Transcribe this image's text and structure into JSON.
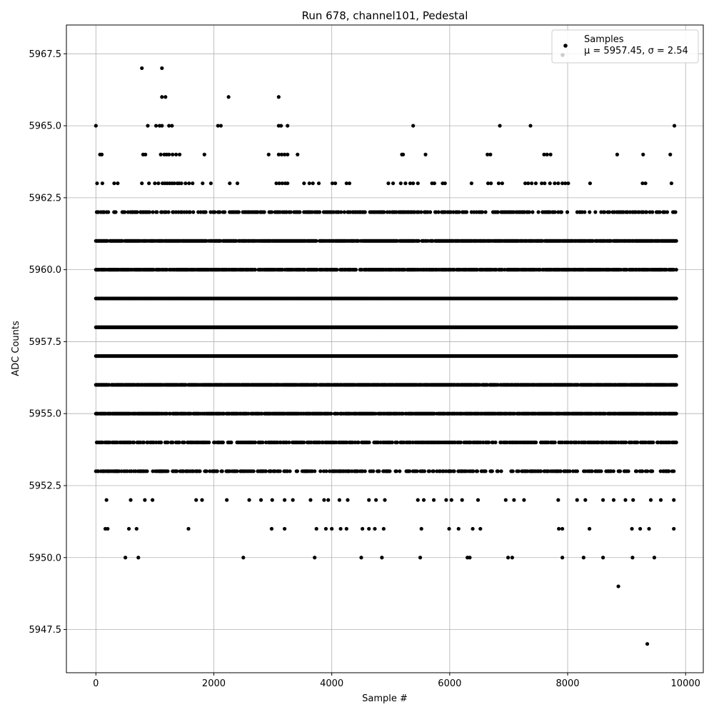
{
  "chart_data": {
    "type": "scatter",
    "title": "Run 678, channel101, Pedestal",
    "xlabel": "Sample #",
    "ylabel": "ADC Counts",
    "xlim": [
      -500,
      10300
    ],
    "ylim": [
      5946.0,
      5968.5
    ],
    "xticks": [
      0,
      2000,
      4000,
      6000,
      8000,
      10000
    ],
    "xtick_labels": [
      "0",
      "2000",
      "4000",
      "6000",
      "8000",
      "10000"
    ],
    "yticks": [
      5947.5,
      5950.0,
      5952.5,
      5955.0,
      5957.5,
      5960.0,
      5962.5,
      5965.0,
      5967.5
    ],
    "ytick_labels": [
      "5947.5",
      "5950.0",
      "5952.5",
      "5955.0",
      "5957.5",
      "5960.0",
      "5962.5",
      "5965.0",
      "5967.5"
    ],
    "grid": true,
    "legend": {
      "position": "top-right",
      "entries": [
        {
          "label": "Samples",
          "color": "#000000"
        },
        {
          "label": "μ = 5957.45, σ = 2.54",
          "color": "#c0c0c0"
        }
      ]
    },
    "series": [
      {
        "name": "Samples",
        "color": "#000000",
        "points": [
          [
            780,
            5967
          ],
          [
            1120,
            5967
          ],
          [
            1120,
            5966
          ],
          [
            1180,
            5966
          ],
          [
            2250,
            5966
          ],
          [
            3100,
            5966
          ],
          [
            0,
            5965
          ],
          [
            880,
            5965
          ],
          [
            1020,
            5965
          ],
          [
            1080,
            5965
          ],
          [
            1120,
            5965
          ],
          [
            1240,
            5965
          ],
          [
            1290,
            5965
          ],
          [
            2070,
            5965
          ],
          [
            2120,
            5965
          ],
          [
            3100,
            5965
          ],
          [
            3140,
            5965
          ],
          [
            3250,
            5965
          ],
          [
            5380,
            5965
          ],
          [
            6850,
            5965
          ],
          [
            7370,
            5965
          ],
          [
            9810,
            5965
          ],
          [
            70,
            5964
          ],
          [
            100,
            5964
          ],
          [
            800,
            5964
          ],
          [
            840,
            5964
          ],
          [
            1100,
            5964
          ],
          [
            1160,
            5964
          ],
          [
            1200,
            5964
          ],
          [
            1240,
            5964
          ],
          [
            1300,
            5964
          ],
          [
            1360,
            5964
          ],
          [
            1420,
            5964
          ],
          [
            1840,
            5964
          ],
          [
            2930,
            5964
          ],
          [
            3100,
            5964
          ],
          [
            3150,
            5964
          ],
          [
            3200,
            5964
          ],
          [
            3250,
            5964
          ],
          [
            3420,
            5964
          ],
          [
            5190,
            5964
          ],
          [
            5210,
            5964
          ],
          [
            5590,
            5964
          ],
          [
            6640,
            5964
          ],
          [
            6690,
            5964
          ],
          [
            7600,
            5964
          ],
          [
            7650,
            5964
          ],
          [
            7710,
            5964
          ],
          [
            8840,
            5964
          ],
          [
            9280,
            5964
          ],
          [
            9740,
            5964
          ],
          [
            20,
            5963
          ],
          [
            110,
            5963
          ],
          [
            310,
            5963
          ],
          [
            370,
            5963
          ],
          [
            780,
            5963
          ],
          [
            900,
            5963
          ],
          [
            1000,
            5963
          ],
          [
            1060,
            5963
          ],
          [
            1130,
            5963
          ],
          [
            1170,
            5963
          ],
          [
            1210,
            5963
          ],
          [
            1250,
            5963
          ],
          [
            1290,
            5963
          ],
          [
            1330,
            5963
          ],
          [
            1380,
            5963
          ],
          [
            1410,
            5963
          ],
          [
            1450,
            5963
          ],
          [
            1520,
            5963
          ],
          [
            1580,
            5963
          ],
          [
            1640,
            5963
          ],
          [
            1810,
            5963
          ],
          [
            1950,
            5963
          ],
          [
            2270,
            5963
          ],
          [
            2400,
            5963
          ],
          [
            3060,
            5963
          ],
          [
            3110,
            5963
          ],
          [
            3160,
            5963
          ],
          [
            3210,
            5963
          ],
          [
            3250,
            5963
          ],
          [
            3530,
            5963
          ],
          [
            3620,
            5963
          ],
          [
            3680,
            5963
          ],
          [
            3780,
            5963
          ],
          [
            4010,
            5963
          ],
          [
            4060,
            5963
          ],
          [
            4250,
            5963
          ],
          [
            4300,
            5963
          ],
          [
            4960,
            5963
          ],
          [
            5040,
            5963
          ],
          [
            5170,
            5963
          ],
          [
            5250,
            5963
          ],
          [
            5330,
            5963
          ],
          [
            5380,
            5963
          ],
          [
            5460,
            5963
          ],
          [
            5700,
            5963
          ],
          [
            5740,
            5963
          ],
          [
            5880,
            5963
          ],
          [
            5920,
            5963
          ],
          [
            6370,
            5963
          ],
          [
            6650,
            5963
          ],
          [
            6700,
            5963
          ],
          [
            6830,
            5963
          ],
          [
            6890,
            5963
          ],
          [
            7280,
            5963
          ],
          [
            7330,
            5963
          ],
          [
            7390,
            5963
          ],
          [
            7460,
            5963
          ],
          [
            7560,
            5963
          ],
          [
            7610,
            5963
          ],
          [
            7700,
            5963
          ],
          [
            7780,
            5963
          ],
          [
            7840,
            5963
          ],
          [
            7910,
            5963
          ],
          [
            7960,
            5963
          ],
          [
            8010,
            5963
          ],
          [
            8380,
            5963
          ],
          [
            9270,
            5963
          ],
          [
            9320,
            5963
          ],
          [
            9760,
            5963
          ]
        ]
      },
      {
        "name": "Samples",
        "color": "#000000",
        "points": [
          [
            180,
            5952
          ],
          [
            590,
            5952
          ],
          [
            830,
            5952
          ],
          [
            960,
            5952
          ],
          [
            1700,
            5952
          ],
          [
            1800,
            5952
          ],
          [
            2220,
            5952
          ],
          [
            2600,
            5952
          ],
          [
            2800,
            5952
          ],
          [
            2990,
            5952
          ],
          [
            3200,
            5952
          ],
          [
            3340,
            5952
          ],
          [
            3640,
            5952
          ],
          [
            3870,
            5952
          ],
          [
            3940,
            5952
          ],
          [
            4130,
            5952
          ],
          [
            4270,
            5952
          ],
          [
            4630,
            5952
          ],
          [
            4750,
            5952
          ],
          [
            4900,
            5952
          ],
          [
            5460,
            5952
          ],
          [
            5560,
            5952
          ],
          [
            5730,
            5952
          ],
          [
            5940,
            5952
          ],
          [
            6030,
            5952
          ],
          [
            6210,
            5952
          ],
          [
            6480,
            5952
          ],
          [
            6950,
            5952
          ],
          [
            7090,
            5952
          ],
          [
            7260,
            5952
          ],
          [
            7840,
            5952
          ],
          [
            8160,
            5952
          ],
          [
            8300,
            5952
          ],
          [
            8600,
            5952
          ],
          [
            8780,
            5952
          ],
          [
            8980,
            5952
          ],
          [
            9110,
            5952
          ],
          [
            9410,
            5952
          ],
          [
            9580,
            5952
          ],
          [
            9800,
            5952
          ],
          [
            160,
            5951
          ],
          [
            200,
            5951
          ],
          [
            560,
            5951
          ],
          [
            690,
            5951
          ],
          [
            1570,
            5951
          ],
          [
            2980,
            5951
          ],
          [
            3200,
            5951
          ],
          [
            3740,
            5951
          ],
          [
            3900,
            5951
          ],
          [
            4000,
            5951
          ],
          [
            4150,
            5951
          ],
          [
            4250,
            5951
          ],
          [
            4520,
            5951
          ],
          [
            4630,
            5951
          ],
          [
            4730,
            5951
          ],
          [
            4880,
            5951
          ],
          [
            5520,
            5951
          ],
          [
            5990,
            5951
          ],
          [
            6150,
            5951
          ],
          [
            6390,
            5951
          ],
          [
            6520,
            5951
          ],
          [
            7850,
            5951
          ],
          [
            7910,
            5951
          ],
          [
            8370,
            5951
          ],
          [
            9090,
            5951
          ],
          [
            9230,
            5951
          ],
          [
            9380,
            5951
          ],
          [
            9800,
            5951
          ],
          [
            500,
            5950
          ],
          [
            720,
            5950
          ],
          [
            2500,
            5950
          ],
          [
            3710,
            5950
          ],
          [
            4500,
            5950
          ],
          [
            4850,
            5950
          ],
          [
            5500,
            5950
          ],
          [
            6300,
            5950
          ],
          [
            6340,
            5950
          ],
          [
            6990,
            5950
          ],
          [
            7060,
            5950
          ],
          [
            7910,
            5950
          ],
          [
            8270,
            5950
          ],
          [
            8600,
            5950
          ],
          [
            9100,
            5950
          ],
          [
            9470,
            5950
          ],
          [
            8860,
            5949
          ],
          [
            9350,
            5947
          ]
        ]
      }
    ],
    "band_series": {
      "name": "Samples",
      "color": "#000000",
      "levels": [
        5962,
        5961,
        5960,
        5959,
        5958,
        5957,
        5956,
        5955,
        5954,
        5953
      ],
      "note_density": [
        0.45,
        0.9,
        0.8,
        1.0,
        1.0,
        1.0,
        0.9,
        0.85,
        0.6,
        0.45
      ],
      "x_range": [
        0,
        9850
      ]
    }
  }
}
